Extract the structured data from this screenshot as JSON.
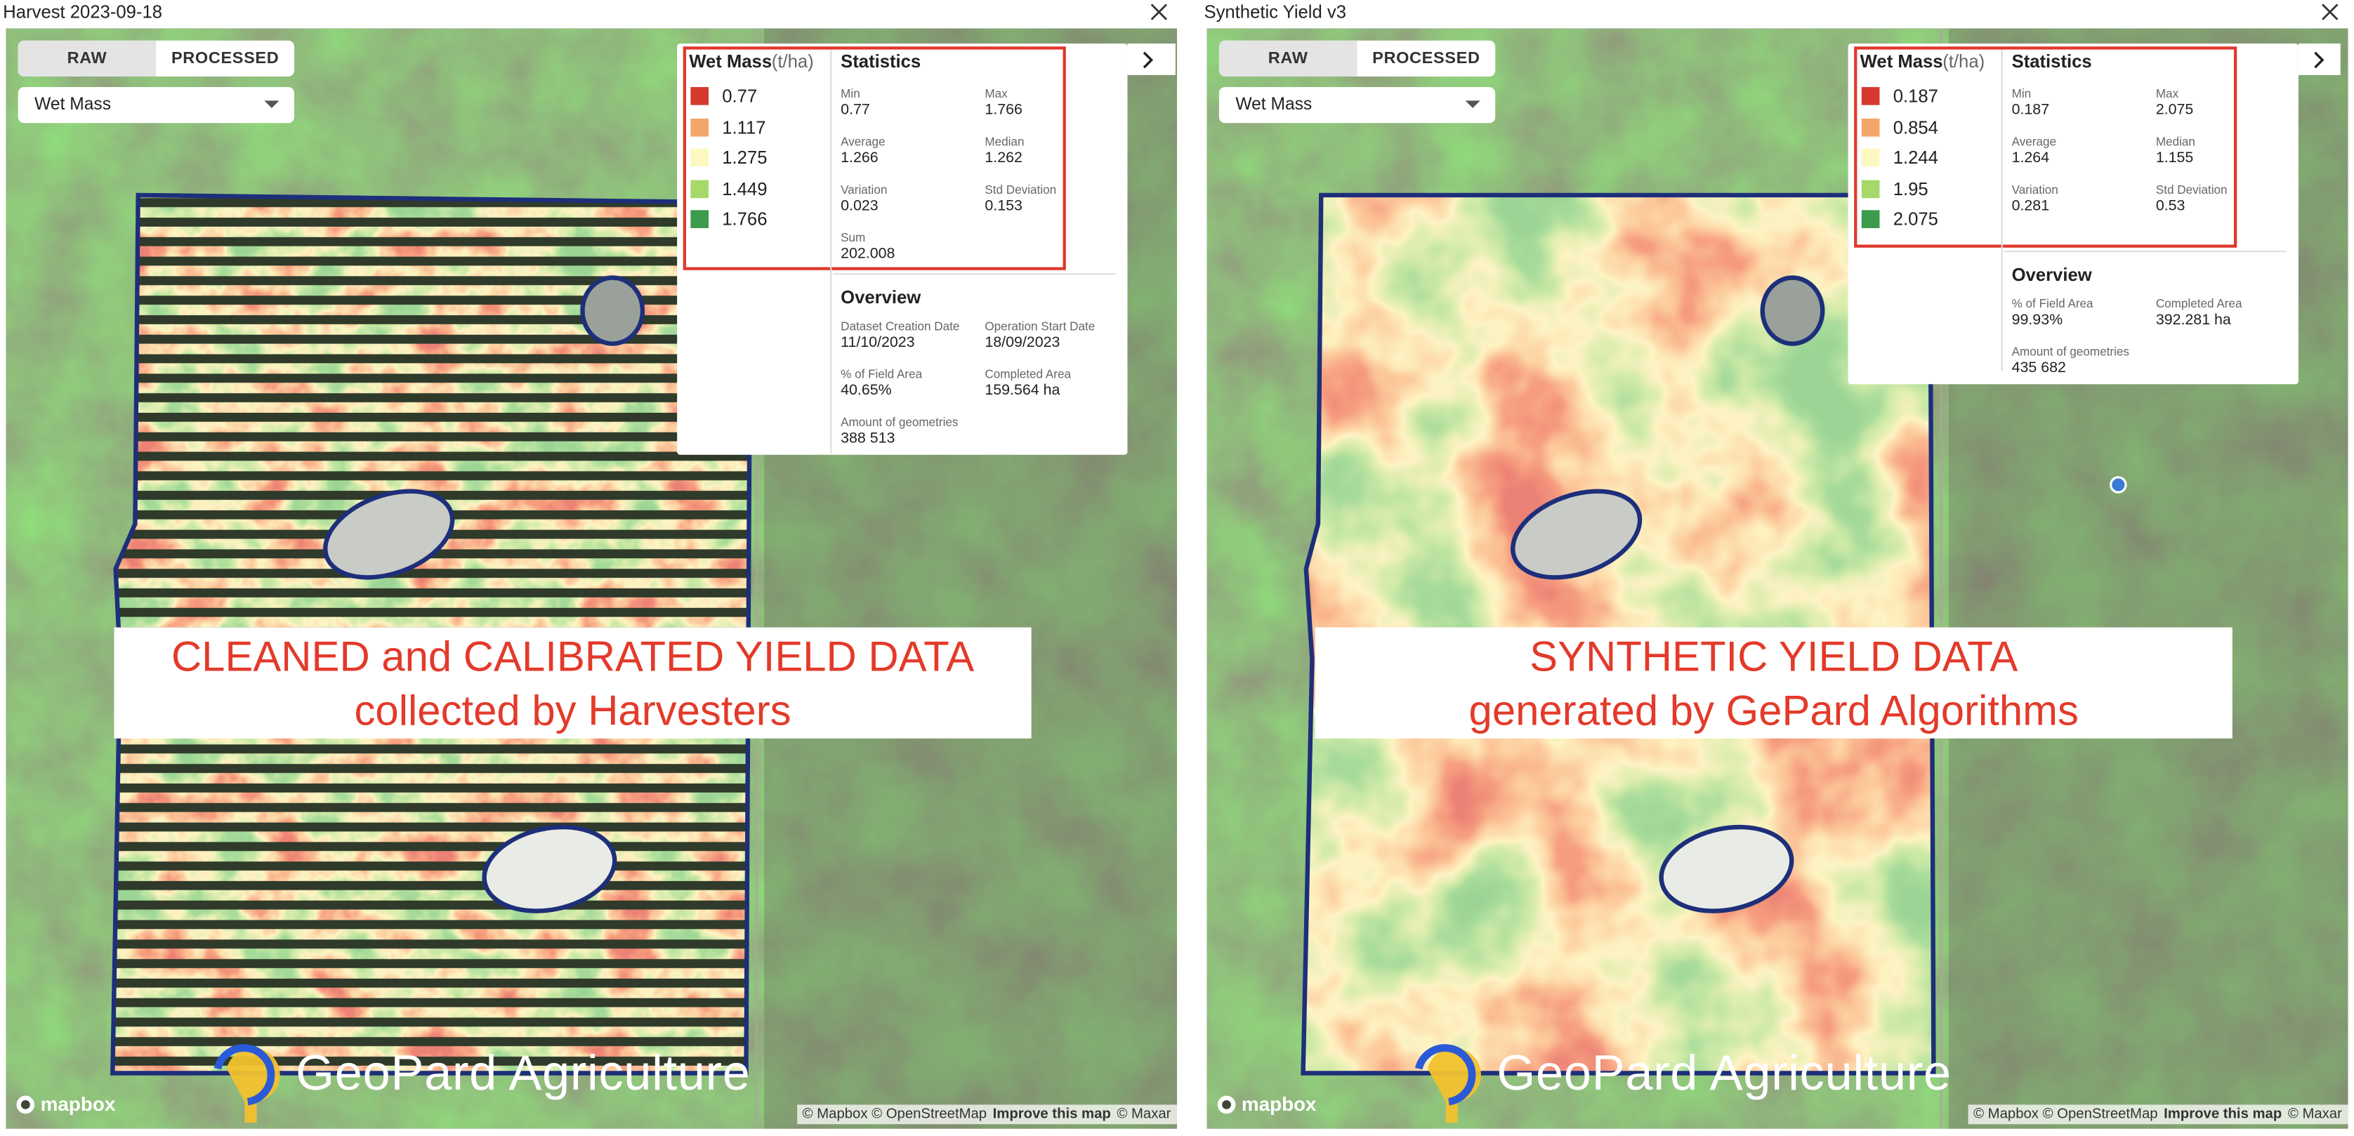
{
  "panels": [
    {
      "title": "Harvest 2023-09-18",
      "tabs": [
        "RAW",
        "PROCESSED"
      ],
      "dropdown": "Wet Mass",
      "legend": {
        "title": "Wet Mass",
        "unit": "(t/ha)",
        "items": [
          {
            "color": "#d63a2f",
            "label": "0.77"
          },
          {
            "color": "#f4a66a",
            "label": "1.117"
          },
          {
            "color": "#fdf8c0",
            "label": "1.275"
          },
          {
            "color": "#a6d96a",
            "label": "1.449"
          },
          {
            "color": "#3c9b4c",
            "label": "1.766"
          }
        ]
      },
      "statistics": {
        "title": "Statistics",
        "items": [
          {
            "label": "Min",
            "value": "0.77"
          },
          {
            "label": "Max",
            "value": "1.766"
          },
          {
            "label": "Average",
            "value": "1.266"
          },
          {
            "label": "Median",
            "value": "1.262"
          },
          {
            "label": "Variation",
            "value": "0.023"
          },
          {
            "label": "Std Deviation",
            "value": "0.153"
          },
          {
            "label": "Sum",
            "value": "202.008"
          }
        ]
      },
      "overview": {
        "title": "Overview",
        "items": [
          {
            "label": "Dataset Creation Date",
            "value": "11/10/2023"
          },
          {
            "label": "Operation Start Date",
            "value": "18/09/2023"
          },
          {
            "label": "% of Field Area",
            "value": "40.65%"
          },
          {
            "label": "Completed Area",
            "value": "159.564 ha"
          },
          {
            "label": "Amount of geometries",
            "value": "388 513"
          }
        ]
      },
      "banner": [
        "CLEANED and CALIBRATED YIELD DATA",
        "collected by Harvesters"
      ],
      "logo": "GeoPard Agriculture",
      "mapbox": "mapbox",
      "attribution": [
        "© Mapbox © OpenStreetMap",
        "Improve this map",
        "© Maxar"
      ]
    },
    {
      "title": "Synthetic Yield v3",
      "tabs": [
        "RAW",
        "PROCESSED"
      ],
      "dropdown": "Wet Mass",
      "legend": {
        "title": "Wet Mass",
        "unit": "(t/ha)",
        "items": [
          {
            "color": "#d63a2f",
            "label": "0.187"
          },
          {
            "color": "#f4a66a",
            "label": "0.854"
          },
          {
            "color": "#fdf8c0",
            "label": "1.244"
          },
          {
            "color": "#a6d96a",
            "label": "1.95"
          },
          {
            "color": "#3c9b4c",
            "label": "2.075"
          }
        ]
      },
      "statistics": {
        "title": "Statistics",
        "items": [
          {
            "label": "Min",
            "value": "0.187"
          },
          {
            "label": "Max",
            "value": "2.075"
          },
          {
            "label": "Average",
            "value": "1.264"
          },
          {
            "label": "Median",
            "value": "1.155"
          },
          {
            "label": "Variation",
            "value": "0.281"
          },
          {
            "label": "Std Deviation",
            "value": "0.53"
          }
        ]
      },
      "overview": {
        "title": "Overview",
        "items": [
          {
            "label": "% of Field Area",
            "value": "99.93%"
          },
          {
            "label": "Completed Area",
            "value": "392.281 ha"
          },
          {
            "label": "Amount of geometries",
            "value": "435 682"
          }
        ]
      },
      "banner": [
        "SYNTHETIC YIELD DATA",
        "generated by GePard Algorithms"
      ],
      "logo": "GeoPard Agriculture",
      "mapbox": "mapbox",
      "attribution": [
        "© Mapbox © OpenStreetMap",
        "Improve this map",
        "© Maxar"
      ]
    }
  ]
}
